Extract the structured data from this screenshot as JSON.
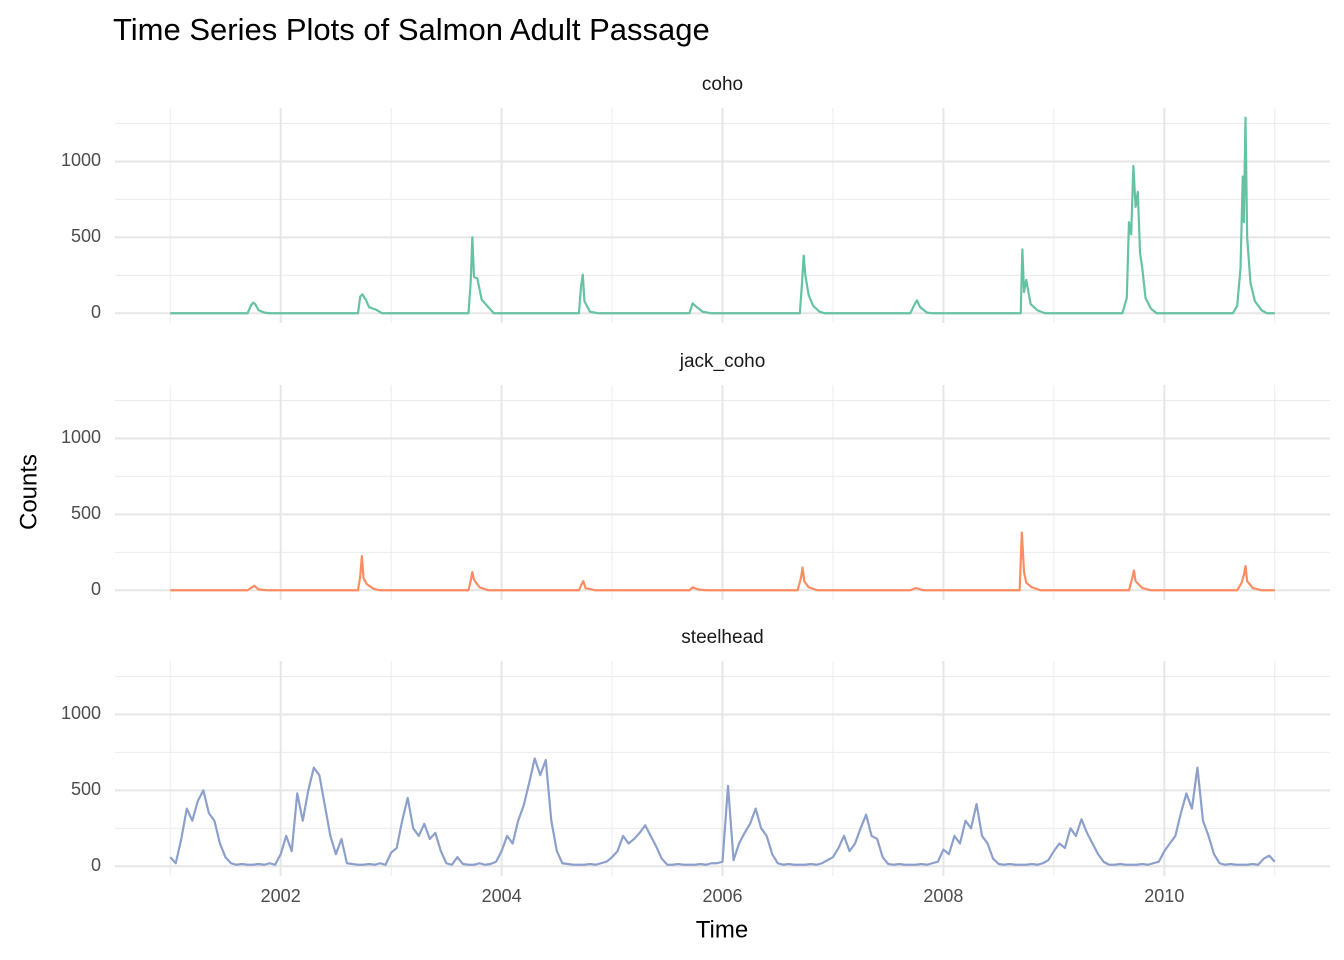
{
  "chart_data": {
    "type": "line",
    "title": "Time Series Plots of Salmon Adult Passage",
    "xlabel": "Time",
    "ylabel": "Counts",
    "xlim": [
      2000.5,
      2011.5
    ],
    "xticks": [
      2002,
      2004,
      2006,
      2008,
      2010
    ],
    "xminorticks": [
      2001,
      2003,
      2005,
      2007,
      2009,
      2011
    ],
    "ylim": [
      -64,
      1352
    ],
    "yticks": [
      0,
      500,
      1000
    ],
    "yminorticks": [
      250,
      750,
      1250
    ],
    "grid": true,
    "series": [
      {
        "name": "coho",
        "color": "#66c2a5",
        "x": [
          2001.0,
          2001.7,
          2001.73,
          2001.75,
          2001.77,
          2001.8,
          2001.85,
          2001.9,
          2002.7,
          2002.72,
          2002.74,
          2002.77,
          2002.8,
          2002.86,
          2002.92,
          2003.7,
          2003.72,
          2003.735,
          2003.75,
          2003.78,
          2003.82,
          2003.88,
          2003.93,
          2004.7,
          2004.72,
          2004.735,
          2004.75,
          2004.8,
          2004.88,
          2005.7,
          2005.73,
          2005.76,
          2005.82,
          2005.9,
          2006.7,
          2006.72,
          2006.735,
          2006.75,
          2006.78,
          2006.82,
          2006.88,
          2006.93,
          2007.7,
          2007.74,
          2007.76,
          2007.79,
          2007.85,
          2007.9,
          2008.7,
          2008.715,
          2008.73,
          2008.75,
          2008.79,
          2008.85,
          2008.92,
          2009.62,
          2009.66,
          2009.68,
          2009.7,
          2009.72,
          2009.74,
          2009.76,
          2009.78,
          2009.8,
          2009.83,
          2009.88,
          2009.93,
          2010.62,
          2010.66,
          2010.69,
          2010.71,
          2010.72,
          2010.735,
          2010.75,
          2010.78,
          2010.82,
          2010.88,
          2010.93,
          2011.0
        ],
        "values": [
          0,
          0,
          50,
          70,
          60,
          20,
          5,
          0,
          0,
          110,
          125,
          90,
          40,
          25,
          0,
          0,
          200,
          500,
          240,
          230,
          90,
          40,
          0,
          0,
          180,
          255,
          80,
          10,
          0,
          0,
          65,
          45,
          10,
          0,
          0,
          200,
          380,
          250,
          120,
          50,
          10,
          0,
          0,
          60,
          85,
          40,
          5,
          0,
          0,
          420,
          140,
          220,
          60,
          20,
          0,
          0,
          100,
          600,
          520,
          970,
          700,
          800,
          400,
          300,
          100,
          30,
          0,
          0,
          50,
          300,
          900,
          600,
          1288,
          500,
          200,
          80,
          20,
          0,
          0
        ]
      },
      {
        "name": "jack_coho",
        "color": "#fc8d62",
        "x": [
          2001.0,
          2001.7,
          2001.74,
          2001.76,
          2001.8,
          2001.88,
          2002.7,
          2002.72,
          2002.735,
          2002.75,
          2002.78,
          2002.84,
          2002.9,
          2003.7,
          2003.72,
          2003.735,
          2003.75,
          2003.8,
          2003.88,
          2004.7,
          2004.725,
          2004.74,
          2004.76,
          2004.85,
          2005.7,
          2005.73,
          2005.78,
          2005.85,
          2006.68,
          2006.71,
          2006.725,
          2006.74,
          2006.78,
          2006.86,
          2007.7,
          2007.75,
          2007.82,
          2008.69,
          2008.71,
          2008.73,
          2008.75,
          2008.8,
          2008.88,
          2009.68,
          2009.71,
          2009.725,
          2009.74,
          2009.8,
          2009.88,
          2010.66,
          2010.7,
          2010.72,
          2010.735,
          2010.75,
          2010.8,
          2010.88,
          2011.0
        ],
        "values": [
          0,
          0,
          20,
          30,
          5,
          0,
          0,
          90,
          225,
          80,
          40,
          10,
          0,
          0,
          60,
          120,
          70,
          20,
          0,
          0,
          40,
          60,
          15,
          0,
          0,
          20,
          5,
          0,
          0,
          80,
          150,
          60,
          20,
          0,
          0,
          15,
          0,
          0,
          380,
          120,
          50,
          20,
          0,
          0,
          80,
          130,
          60,
          15,
          0,
          0,
          50,
          100,
          160,
          60,
          15,
          0,
          0
        ]
      },
      {
        "name": "steelhead",
        "color": "#8da0cb",
        "x": [
          2001.0,
          2001.05,
          2001.1,
          2001.15,
          2001.2,
          2001.25,
          2001.3,
          2001.35,
          2001.4,
          2001.45,
          2001.5,
          2001.55,
          2001.6,
          2001.65,
          2001.7,
          2001.75,
          2001.8,
          2001.85,
          2001.9,
          2001.95,
          2002.0,
          2002.05,
          2002.1,
          2002.15,
          2002.2,
          2002.25,
          2002.3,
          2002.35,
          2002.4,
          2002.45,
          2002.5,
          2002.55,
          2002.6,
          2002.65,
          2002.7,
          2002.75,
          2002.8,
          2002.85,
          2002.9,
          2002.95,
          2003.0,
          2003.05,
          2003.1,
          2003.15,
          2003.2,
          2003.25,
          2003.3,
          2003.35,
          2003.4,
          2003.45,
          2003.5,
          2003.55,
          2003.6,
          2003.65,
          2003.7,
          2003.75,
          2003.8,
          2003.85,
          2003.9,
          2003.95,
          2004.0,
          2004.05,
          2004.1,
          2004.15,
          2004.2,
          2004.25,
          2004.3,
          2004.35,
          2004.4,
          2004.45,
          2004.5,
          2004.55,
          2004.6,
          2004.65,
          2004.7,
          2004.75,
          2004.8,
          2004.85,
          2004.9,
          2004.95,
          2005.0,
          2005.05,
          2005.1,
          2005.15,
          2005.2,
          2005.25,
          2005.3,
          2005.35,
          2005.4,
          2005.45,
          2005.5,
          2005.55,
          2005.6,
          2005.65,
          2005.7,
          2005.75,
          2005.8,
          2005.85,
          2005.9,
          2005.95,
          2006.0,
          2006.05,
          2006.1,
          2006.15,
          2006.2,
          2006.25,
          2006.3,
          2006.35,
          2006.4,
          2006.45,
          2006.5,
          2006.55,
          2006.6,
          2006.65,
          2006.7,
          2006.75,
          2006.8,
          2006.85,
          2006.9,
          2006.95,
          2007.0,
          2007.05,
          2007.1,
          2007.15,
          2007.2,
          2007.25,
          2007.3,
          2007.35,
          2007.4,
          2007.45,
          2007.5,
          2007.55,
          2007.6,
          2007.65,
          2007.7,
          2007.75,
          2007.8,
          2007.85,
          2007.9,
          2007.95,
          2008.0,
          2008.05,
          2008.1,
          2008.15,
          2008.2,
          2008.25,
          2008.3,
          2008.35,
          2008.4,
          2008.45,
          2008.5,
          2008.55,
          2008.6,
          2008.65,
          2008.7,
          2008.75,
          2008.8,
          2008.85,
          2008.9,
          2008.95,
          2009.0,
          2009.05,
          2009.1,
          2009.15,
          2009.2,
          2009.25,
          2009.3,
          2009.35,
          2009.4,
          2009.45,
          2009.5,
          2009.55,
          2009.6,
          2009.65,
          2009.7,
          2009.75,
          2009.8,
          2009.85,
          2009.9,
          2009.95,
          2010.0,
          2010.05,
          2010.1,
          2010.15,
          2010.2,
          2010.25,
          2010.3,
          2010.35,
          2010.4,
          2010.45,
          2010.5,
          2010.55,
          2010.6,
          2010.65,
          2010.7,
          2010.75,
          2010.8,
          2010.85,
          2010.9,
          2010.95,
          2011.0
        ],
        "values": [
          60,
          20,
          180,
          380,
          300,
          430,
          500,
          350,
          300,
          150,
          60,
          20,
          10,
          15,
          10,
          10,
          15,
          10,
          20,
          10,
          80,
          200,
          100,
          480,
          300,
          500,
          650,
          600,
          400,
          200,
          80,
          180,
          20,
          15,
          10,
          10,
          15,
          10,
          20,
          10,
          90,
          120,
          300,
          450,
          250,
          200,
          280,
          180,
          220,
          100,
          20,
          10,
          60,
          15,
          10,
          10,
          20,
          10,
          15,
          30,
          100,
          200,
          150,
          300,
          400,
          550,
          710,
          600,
          700,
          300,
          100,
          20,
          15,
          10,
          10,
          10,
          15,
          10,
          20,
          30,
          60,
          100,
          200,
          150,
          180,
          220,
          270,
          200,
          130,
          50,
          10,
          10,
          15,
          10,
          10,
          10,
          15,
          10,
          20,
          20,
          30,
          530,
          40,
          150,
          220,
          280,
          380,
          250,
          200,
          80,
          20,
          10,
          15,
          10,
          10,
          10,
          15,
          10,
          20,
          40,
          60,
          120,
          200,
          100,
          150,
          250,
          340,
          200,
          180,
          60,
          15,
          10,
          15,
          10,
          10,
          10,
          15,
          10,
          20,
          30,
          110,
          80,
          200,
          150,
          300,
          250,
          410,
          200,
          150,
          50,
          15,
          10,
          15,
          10,
          10,
          10,
          15,
          10,
          20,
          40,
          100,
          150,
          120,
          250,
          200,
          310,
          220,
          150,
          80,
          30,
          10,
          10,
          15,
          10,
          10,
          10,
          15,
          10,
          20,
          30,
          100,
          150,
          200,
          350,
          480,
          380,
          650,
          300,
          200,
          80,
          20,
          10,
          15,
          10,
          10,
          10,
          15,
          10,
          50,
          70,
          30
        ]
      }
    ]
  }
}
